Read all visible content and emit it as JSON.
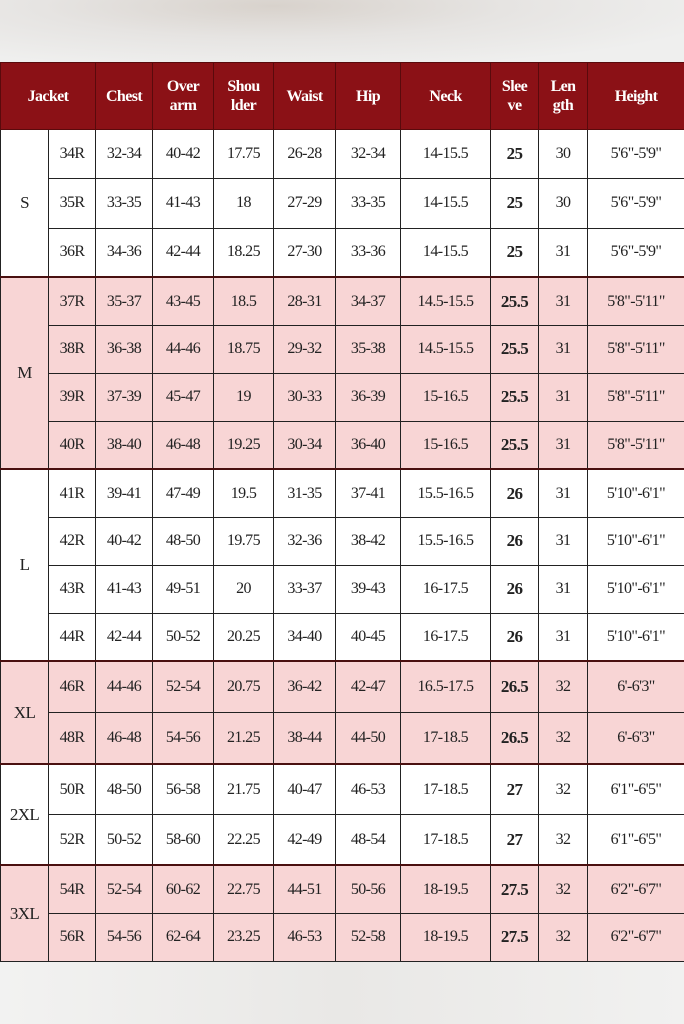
{
  "header": {
    "jacket": "Jacket",
    "columns": [
      [
        "Chest"
      ],
      [
        "Over",
        "arm"
      ],
      [
        "Shou",
        "lder"
      ],
      [
        "Waist"
      ],
      [
        "Hip"
      ],
      [
        "Neck"
      ],
      [
        "Slee",
        "ve"
      ],
      [
        "Len",
        "gth"
      ],
      [
        "Height"
      ]
    ]
  },
  "colors": {
    "header": "#8b1116",
    "pink_row": "#f8d5d5",
    "white_row": "#ffffff"
  },
  "groups": [
    {
      "label": "S",
      "shade": "white",
      "rows": [
        [
          "34R",
          "32-34",
          "40-42",
          "17.75",
          "26-28",
          "32-34",
          "14-15.5",
          "25",
          "30",
          "5'6\"-5'9\""
        ],
        [
          "35R",
          "33-35",
          "41-43",
          "18",
          "27-29",
          "33-35",
          "14-15.5",
          "25",
          "30",
          "5'6\"-5'9\""
        ],
        [
          "36R",
          "34-36",
          "42-44",
          "18.25",
          "27-30",
          "33-36",
          "14-15.5",
          "25",
          "31",
          "5'6\"-5'9\""
        ]
      ]
    },
    {
      "label": "M",
      "shade": "pink",
      "rows": [
        [
          "37R",
          "35-37",
          "43-45",
          "18.5",
          "28-31",
          "34-37",
          "14.5-15.5",
          "25.5",
          "31",
          "5'8\"-5'11\""
        ],
        [
          "38R",
          "36-38",
          "44-46",
          "18.75",
          "29-32",
          "35-38",
          "14.5-15.5",
          "25.5",
          "31",
          "5'8\"-5'11\""
        ],
        [
          "39R",
          "37-39",
          "45-47",
          "19",
          "30-33",
          "36-39",
          "15-16.5",
          "25.5",
          "31",
          "5'8\"-5'11\""
        ],
        [
          "40R",
          "38-40",
          "46-48",
          "19.25",
          "30-34",
          "36-40",
          "15-16.5",
          "25.5",
          "31",
          "5'8\"-5'11\""
        ]
      ]
    },
    {
      "label": "L",
      "shade": "white",
      "rows": [
        [
          "41R",
          "39-41",
          "47-49",
          "19.5",
          "31-35",
          "37-41",
          "15.5-16.5",
          "26",
          "31",
          "5'10\"-6'1\""
        ],
        [
          "42R",
          "40-42",
          "48-50",
          "19.75",
          "32-36",
          "38-42",
          "15.5-16.5",
          "26",
          "31",
          "5'10\"-6'1\""
        ],
        [
          "43R",
          "41-43",
          "49-51",
          "20",
          "33-37",
          "39-43",
          "16-17.5",
          "26",
          "31",
          "5'10\"-6'1\""
        ],
        [
          "44R",
          "42-44",
          "50-52",
          "20.25",
          "34-40",
          "40-45",
          "16-17.5",
          "26",
          "31",
          "5'10\"-6'1\""
        ]
      ]
    },
    {
      "label": "XL",
      "shade": "pink",
      "rows": [
        [
          "46R",
          "44-46",
          "52-54",
          "20.75",
          "36-42",
          "42-47",
          "16.5-17.5",
          "26.5",
          "32",
          "6'-6'3\""
        ],
        [
          "48R",
          "46-48",
          "54-56",
          "21.25",
          "38-44",
          "44-50",
          "17-18.5",
          "26.5",
          "32",
          "6'-6'3\""
        ]
      ]
    },
    {
      "label": "2XL",
      "shade": "white",
      "rows": [
        [
          "50R",
          "48-50",
          "56-58",
          "21.75",
          "40-47",
          "46-53",
          "17-18.5",
          "27",
          "32",
          "6'1\"-6'5\""
        ],
        [
          "52R",
          "50-52",
          "58-60",
          "22.25",
          "42-49",
          "48-54",
          "17-18.5",
          "27",
          "32",
          "6'1\"-6'5\""
        ]
      ]
    },
    {
      "label": "3XL",
      "shade": "pink",
      "rows": [
        [
          "54R",
          "52-54",
          "60-62",
          "22.75",
          "44-51",
          "50-56",
          "18-19.5",
          "27.5",
          "32",
          "6'2\"-6'7\""
        ],
        [
          "56R",
          "54-56",
          "62-64",
          "23.25",
          "46-53",
          "52-58",
          "18-19.5",
          "27.5",
          "32",
          "6'2\"-6'7\""
        ]
      ]
    }
  ]
}
